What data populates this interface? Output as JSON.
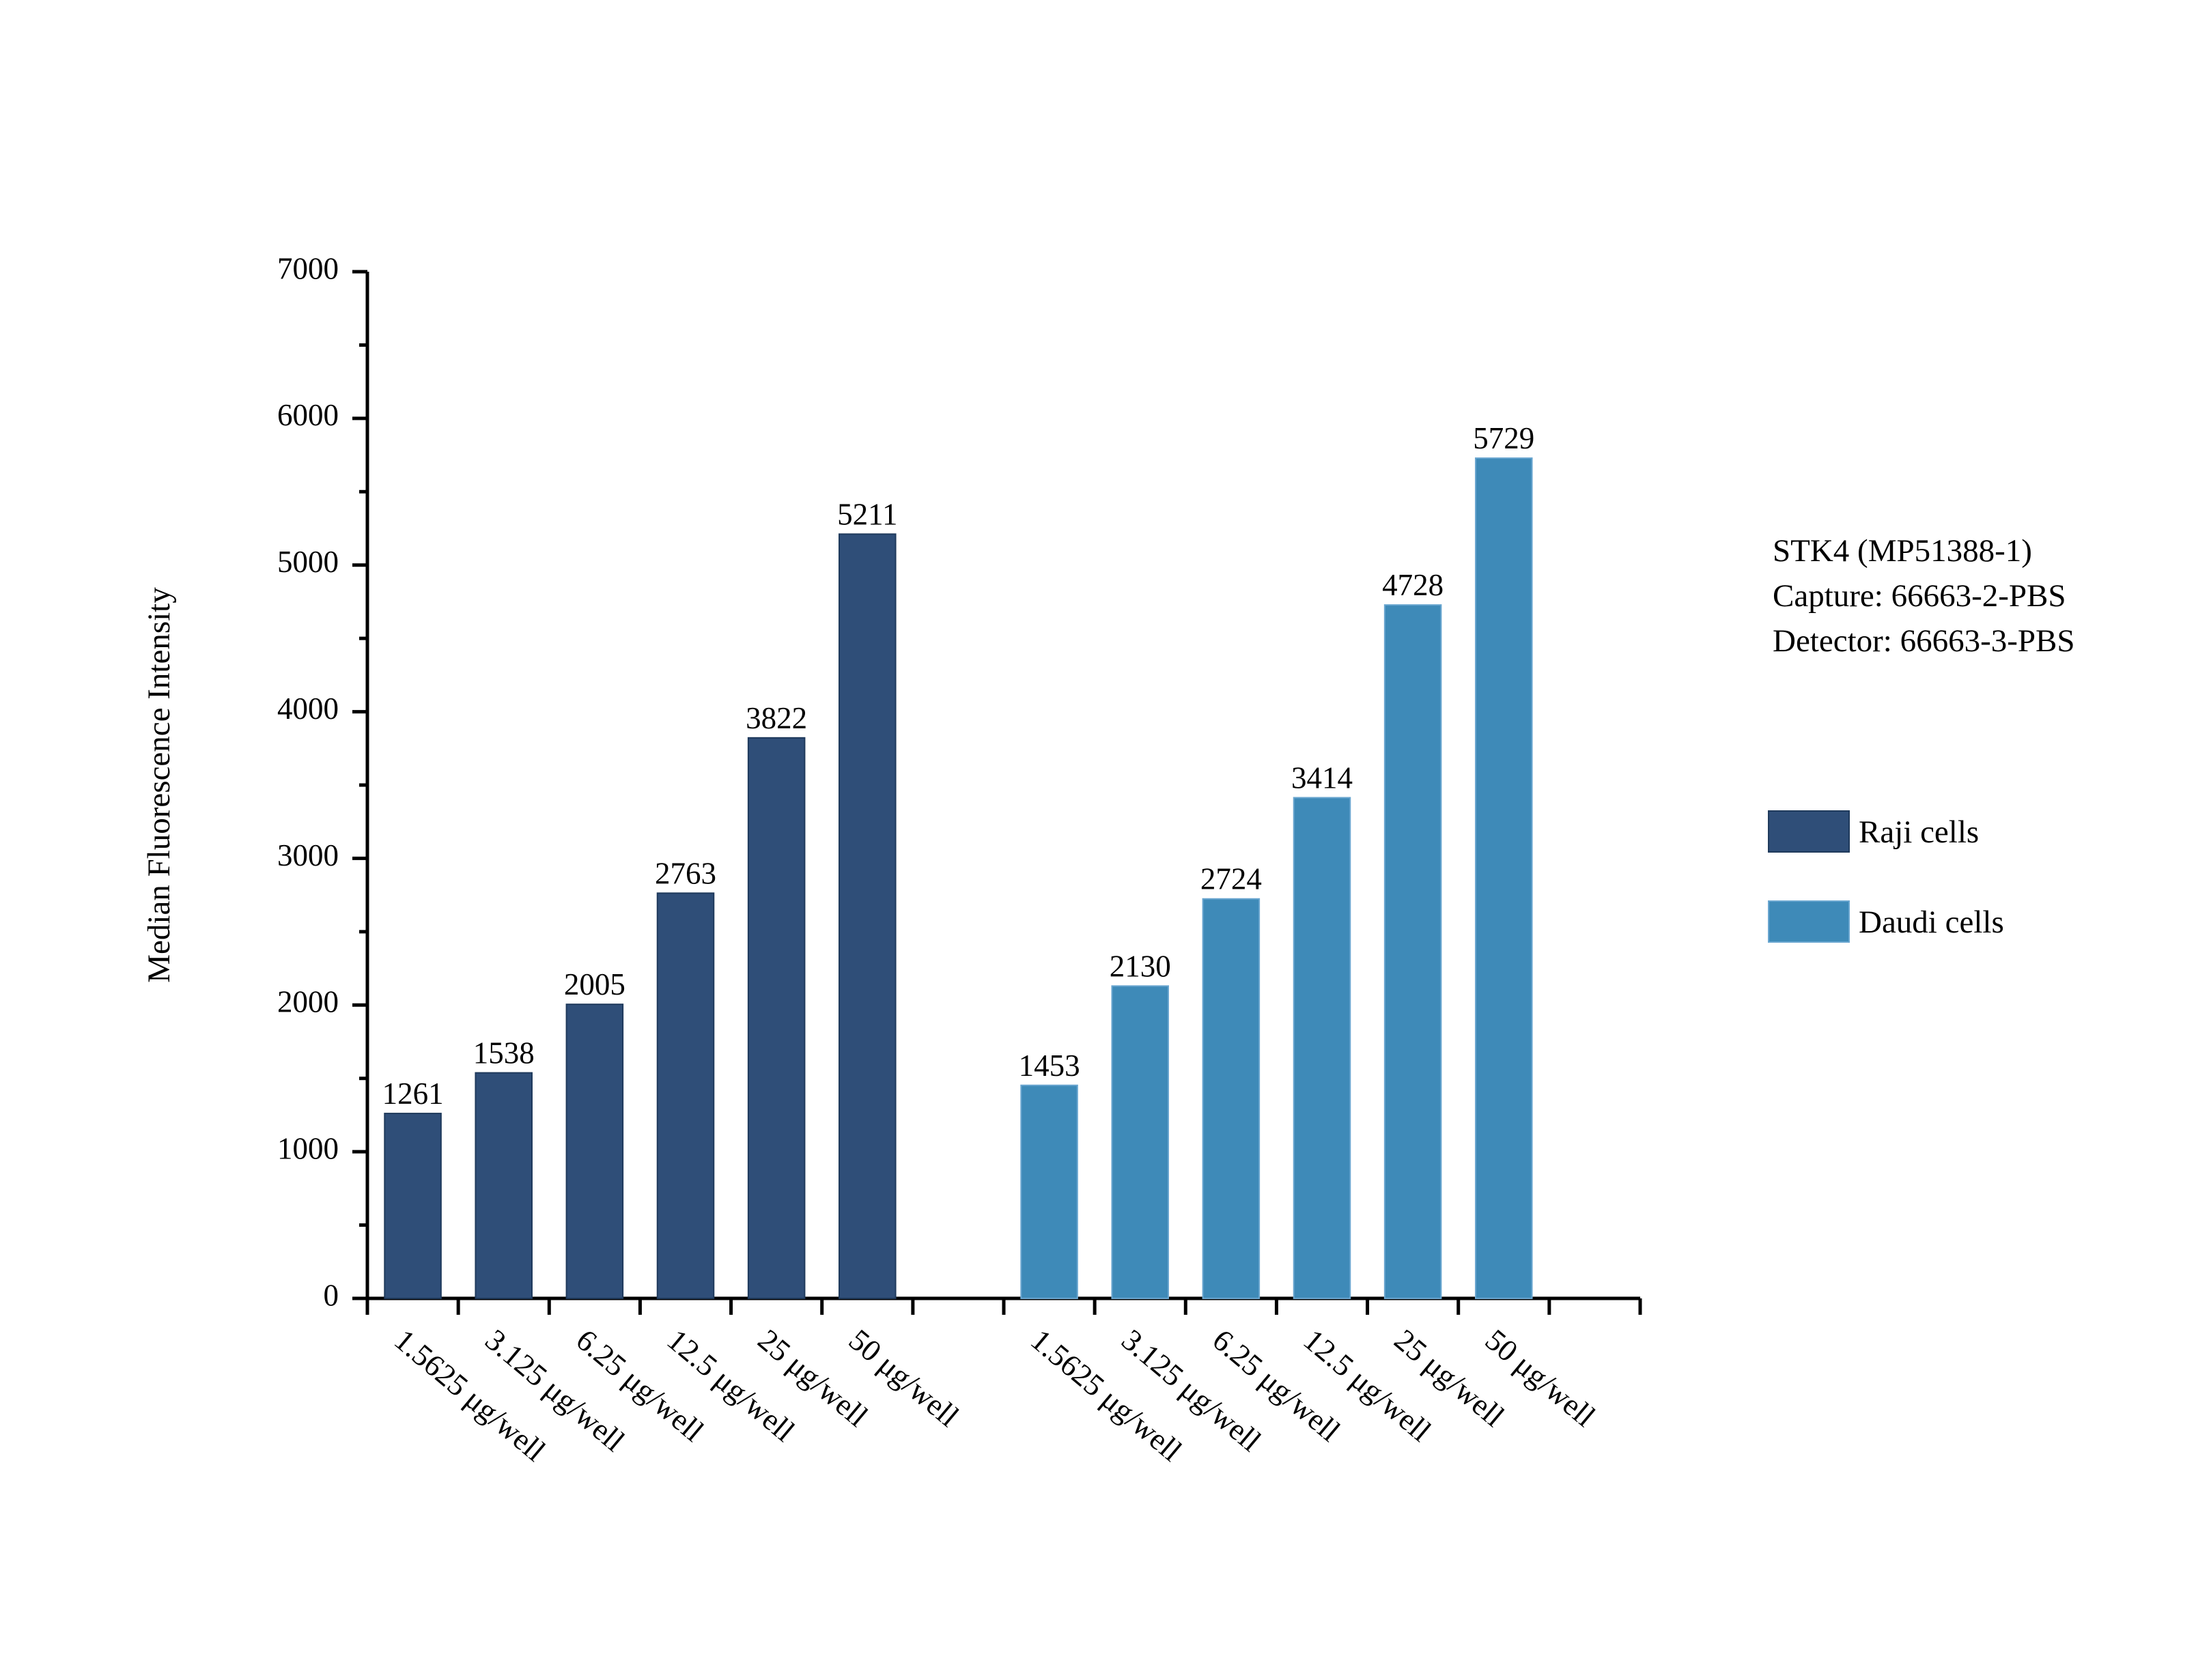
{
  "chart_data": {
    "type": "bar",
    "title": "",
    "xlabel": "",
    "ylabel": "Median Fluorescence Intensity",
    "ylim": [
      0,
      7000
    ],
    "yticks": [
      "0",
      "1000",
      "2000",
      "3000",
      "4000",
      "5000",
      "6000",
      "7000"
    ],
    "categories": [
      "1.5625 μg/well",
      "3.125 μg/well",
      "6.25 μg/well",
      "12.5 μg/well",
      "25 μg/well",
      "50 μg/well"
    ],
    "series": [
      {
        "name": "Raji cells",
        "color": "#2f4e78",
        "values": [
          1261,
          1538,
          2005,
          2763,
          3822,
          5211
        ]
      },
      {
        "name": "Daudi cells",
        "color": "#3e8ab8",
        "values": [
          1453,
          2130,
          2724,
          3414,
          4728,
          5729
        ]
      }
    ],
    "grid": false,
    "legend_position": "right",
    "annotation": [
      "STK4 (MP51388-1)",
      "Capture: 66663-2-PBS",
      "Detector: 66663-3-PBS"
    ]
  }
}
